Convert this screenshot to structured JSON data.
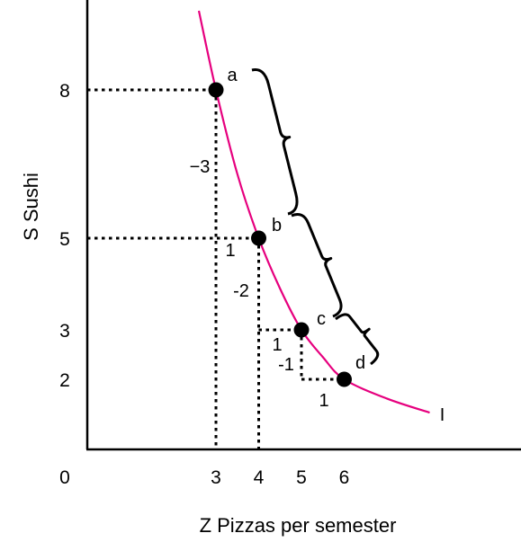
{
  "chart_data": {
    "type": "line",
    "title": "",
    "xlabel": "Z Pizzas per semester",
    "ylabel": "S Sushi",
    "origin_label": "0",
    "x_ticks": [
      "3",
      "4",
      "5",
      "6"
    ],
    "y_ticks": [
      "8",
      "5",
      "3",
      "2"
    ],
    "xlim": [
      0,
      10.5
    ],
    "ylim": [
      0,
      9.5
    ],
    "curve_label": "I",
    "points": [
      {
        "label": "a",
        "x": 3,
        "y": 8
      },
      {
        "label": "b",
        "x": 4,
        "y": 5
      },
      {
        "label": "c",
        "x": 5,
        "y": 3
      },
      {
        "label": "d",
        "x": 6,
        "y": 2
      }
    ],
    "curve_x": [
      2.6,
      3.0,
      3.5,
      4.0,
      4.5,
      5.0,
      5.5,
      6.0,
      7.0,
      8.0
    ],
    "curve_y": [
      9.6,
      8.0,
      6.3,
      5.0,
      3.9,
      3.0,
      2.45,
      2.0,
      1.45,
      1.05
    ],
    "changes": [
      {
        "from": "a",
        "to": "b",
        "dy_label": "−3",
        "dx_label": "1"
      },
      {
        "from": "b",
        "to": "c",
        "dy_label": "-2",
        "dx_label": "1"
      },
      {
        "from": "c",
        "to": "d",
        "dy_label": "-1",
        "dx_label": "1"
      }
    ],
    "colors": {
      "curve": "#e6007e",
      "guides": "#000000",
      "points": "#000000"
    }
  }
}
